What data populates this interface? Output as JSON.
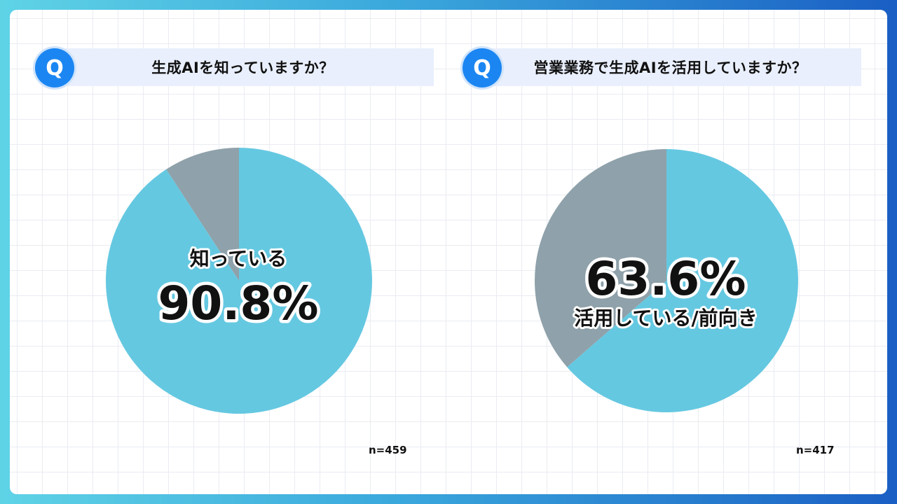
{
  "colors": {
    "primary": "#65c8e1",
    "secondary": "#8fa1aa",
    "icon": "#1b86f2"
  },
  "icon_label": "Q",
  "chart_data": [
    {
      "type": "pie",
      "title": "生成AIを知っていますか？",
      "slices": [
        {
          "label": "知っている",
          "value": 90.8
        },
        {
          "label": "",
          "value": 9.2
        }
      ],
      "center_label": "知っている",
      "center_value": "90.8%",
      "sample": "n=459"
    },
    {
      "type": "pie",
      "title": "営業業務で生成AIを活用していますか？",
      "slices": [
        {
          "label": "活用している/前向き",
          "value": 63.6
        },
        {
          "label": "",
          "value": 36.4
        }
      ],
      "center_label": "活用している/前向き",
      "center_value": "63.6%",
      "sample": "n=417"
    }
  ]
}
